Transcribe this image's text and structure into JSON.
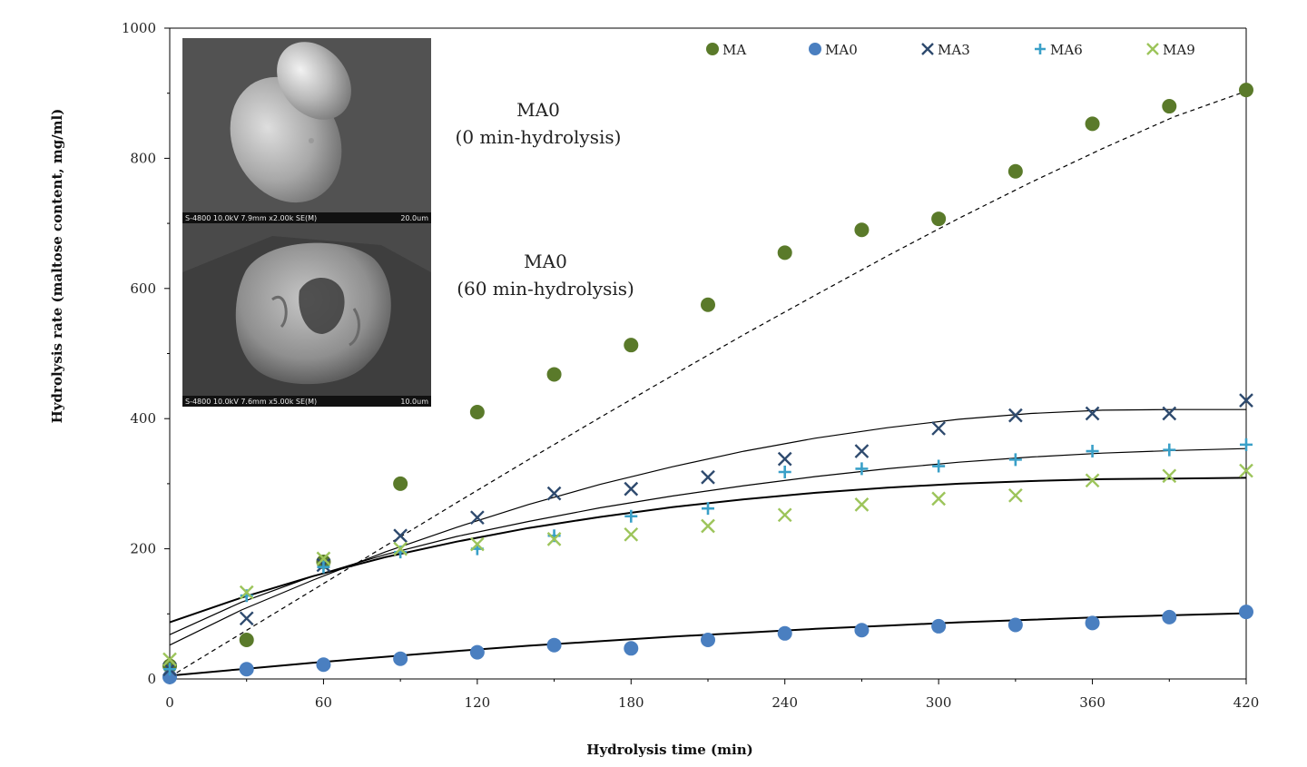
{
  "chart_data": {
    "type": "scatter",
    "xlabel": "Hydrolysis time (min)",
    "ylabel": "Hydrolysis rate (maltose content, mg/ml)",
    "xlim": [
      0,
      420
    ],
    "ylim": [
      0,
      1000
    ],
    "x_ticks": [
      "0",
      "60",
      "120",
      "180",
      "240",
      "300",
      "360",
      "420"
    ],
    "y_ticks": [
      "0",
      "200",
      "400",
      "600",
      "800",
      "1000"
    ],
    "grid": false,
    "legend_position": "top-right",
    "x": [
      0,
      30,
      60,
      90,
      120,
      150,
      180,
      210,
      240,
      270,
      300,
      330,
      360,
      390,
      420
    ],
    "series": [
      {
        "name": "MA",
        "marker": "circle",
        "color": "#5a7a2a",
        "values": [
          20,
          60,
          180,
          300,
          410,
          468,
          513,
          575,
          655,
          690,
          707,
          780,
          853,
          880,
          905
        ],
        "trend": {
          "style": "dashed",
          "values": [
            3,
            70,
            137,
            204,
            271,
            337,
            402,
            466,
            529,
            590,
            650,
            708,
            763,
            815,
            864,
            903
          ]
        }
      },
      {
        "name": "MA0",
        "marker": "circle",
        "color": "#4a7fc0",
        "values": [
          3,
          15,
          22,
          31,
          41,
          52,
          47,
          60,
          70,
          75,
          81,
          83,
          86,
          95,
          103
        ],
        "trend": {
          "style": "solid",
          "values": [
            5,
            15,
            25,
            34,
            43,
            51,
            58,
            65,
            71,
            77,
            82,
            87,
            91,
            95,
            98,
            101
          ]
        }
      },
      {
        "name": "MA3",
        "marker": "x",
        "color": "#2e4a6e",
        "values": [
          15,
          93,
          175,
          220,
          248,
          285,
          292,
          310,
          338,
          350,
          385,
          405,
          408,
          408,
          428
        ],
        "trend": {
          "style": "solid",
          "values": [
            52,
            106,
            152,
            195,
            233,
            268,
            299,
            326,
            350,
            370,
            386,
            399,
            408,
            413,
            414,
            414
          ]
        }
      },
      {
        "name": "MA6",
        "marker": "plus",
        "color": "#3aa0c8",
        "values": [
          15,
          128,
          172,
          195,
          200,
          220,
          250,
          262,
          318,
          323,
          327,
          337,
          350,
          352,
          360
        ],
        "trend": {
          "style": "solid",
          "values": [
            68,
            118,
            158,
            191,
            219,
            242,
            263,
            281,
            297,
            311,
            323,
            333,
            341,
            347,
            351,
            354
          ]
        }
      },
      {
        "name": "MA9",
        "marker": "x",
        "color": "#9cc45a",
        "values": [
          30,
          133,
          185,
          200,
          207,
          215,
          222,
          235,
          252,
          268,
          277,
          282,
          305,
          312,
          320
        ],
        "trend": {
          "style": "solid",
          "values": [
            87,
            125,
            158,
            187,
            211,
            232,
            249,
            264,
            276,
            286,
            294,
            300,
            304,
            307,
            308,
            309
          ]
        }
      }
    ],
    "trend_x": [
      0,
      28,
      56,
      84,
      112,
      140,
      168,
      196,
      224,
      252,
      280,
      308,
      336,
      364,
      392,
      420
    ]
  },
  "annotations": {
    "top_label_1": "MA0",
    "top_label_2": "(0 min-hydrolysis)",
    "bottom_label_1": "MA0",
    "bottom_label_2": "(60 min-hydrolysis)"
  },
  "inset": {
    "top_caption_left": "S-4800 10.0kV 7.9mm x2.00k SE(M)",
    "top_caption_right": "20.0um",
    "bottom_caption_left": "S-4800 10.0kV 7.6mm x5.00k SE(M)",
    "bottom_caption_right": "10.0um"
  }
}
